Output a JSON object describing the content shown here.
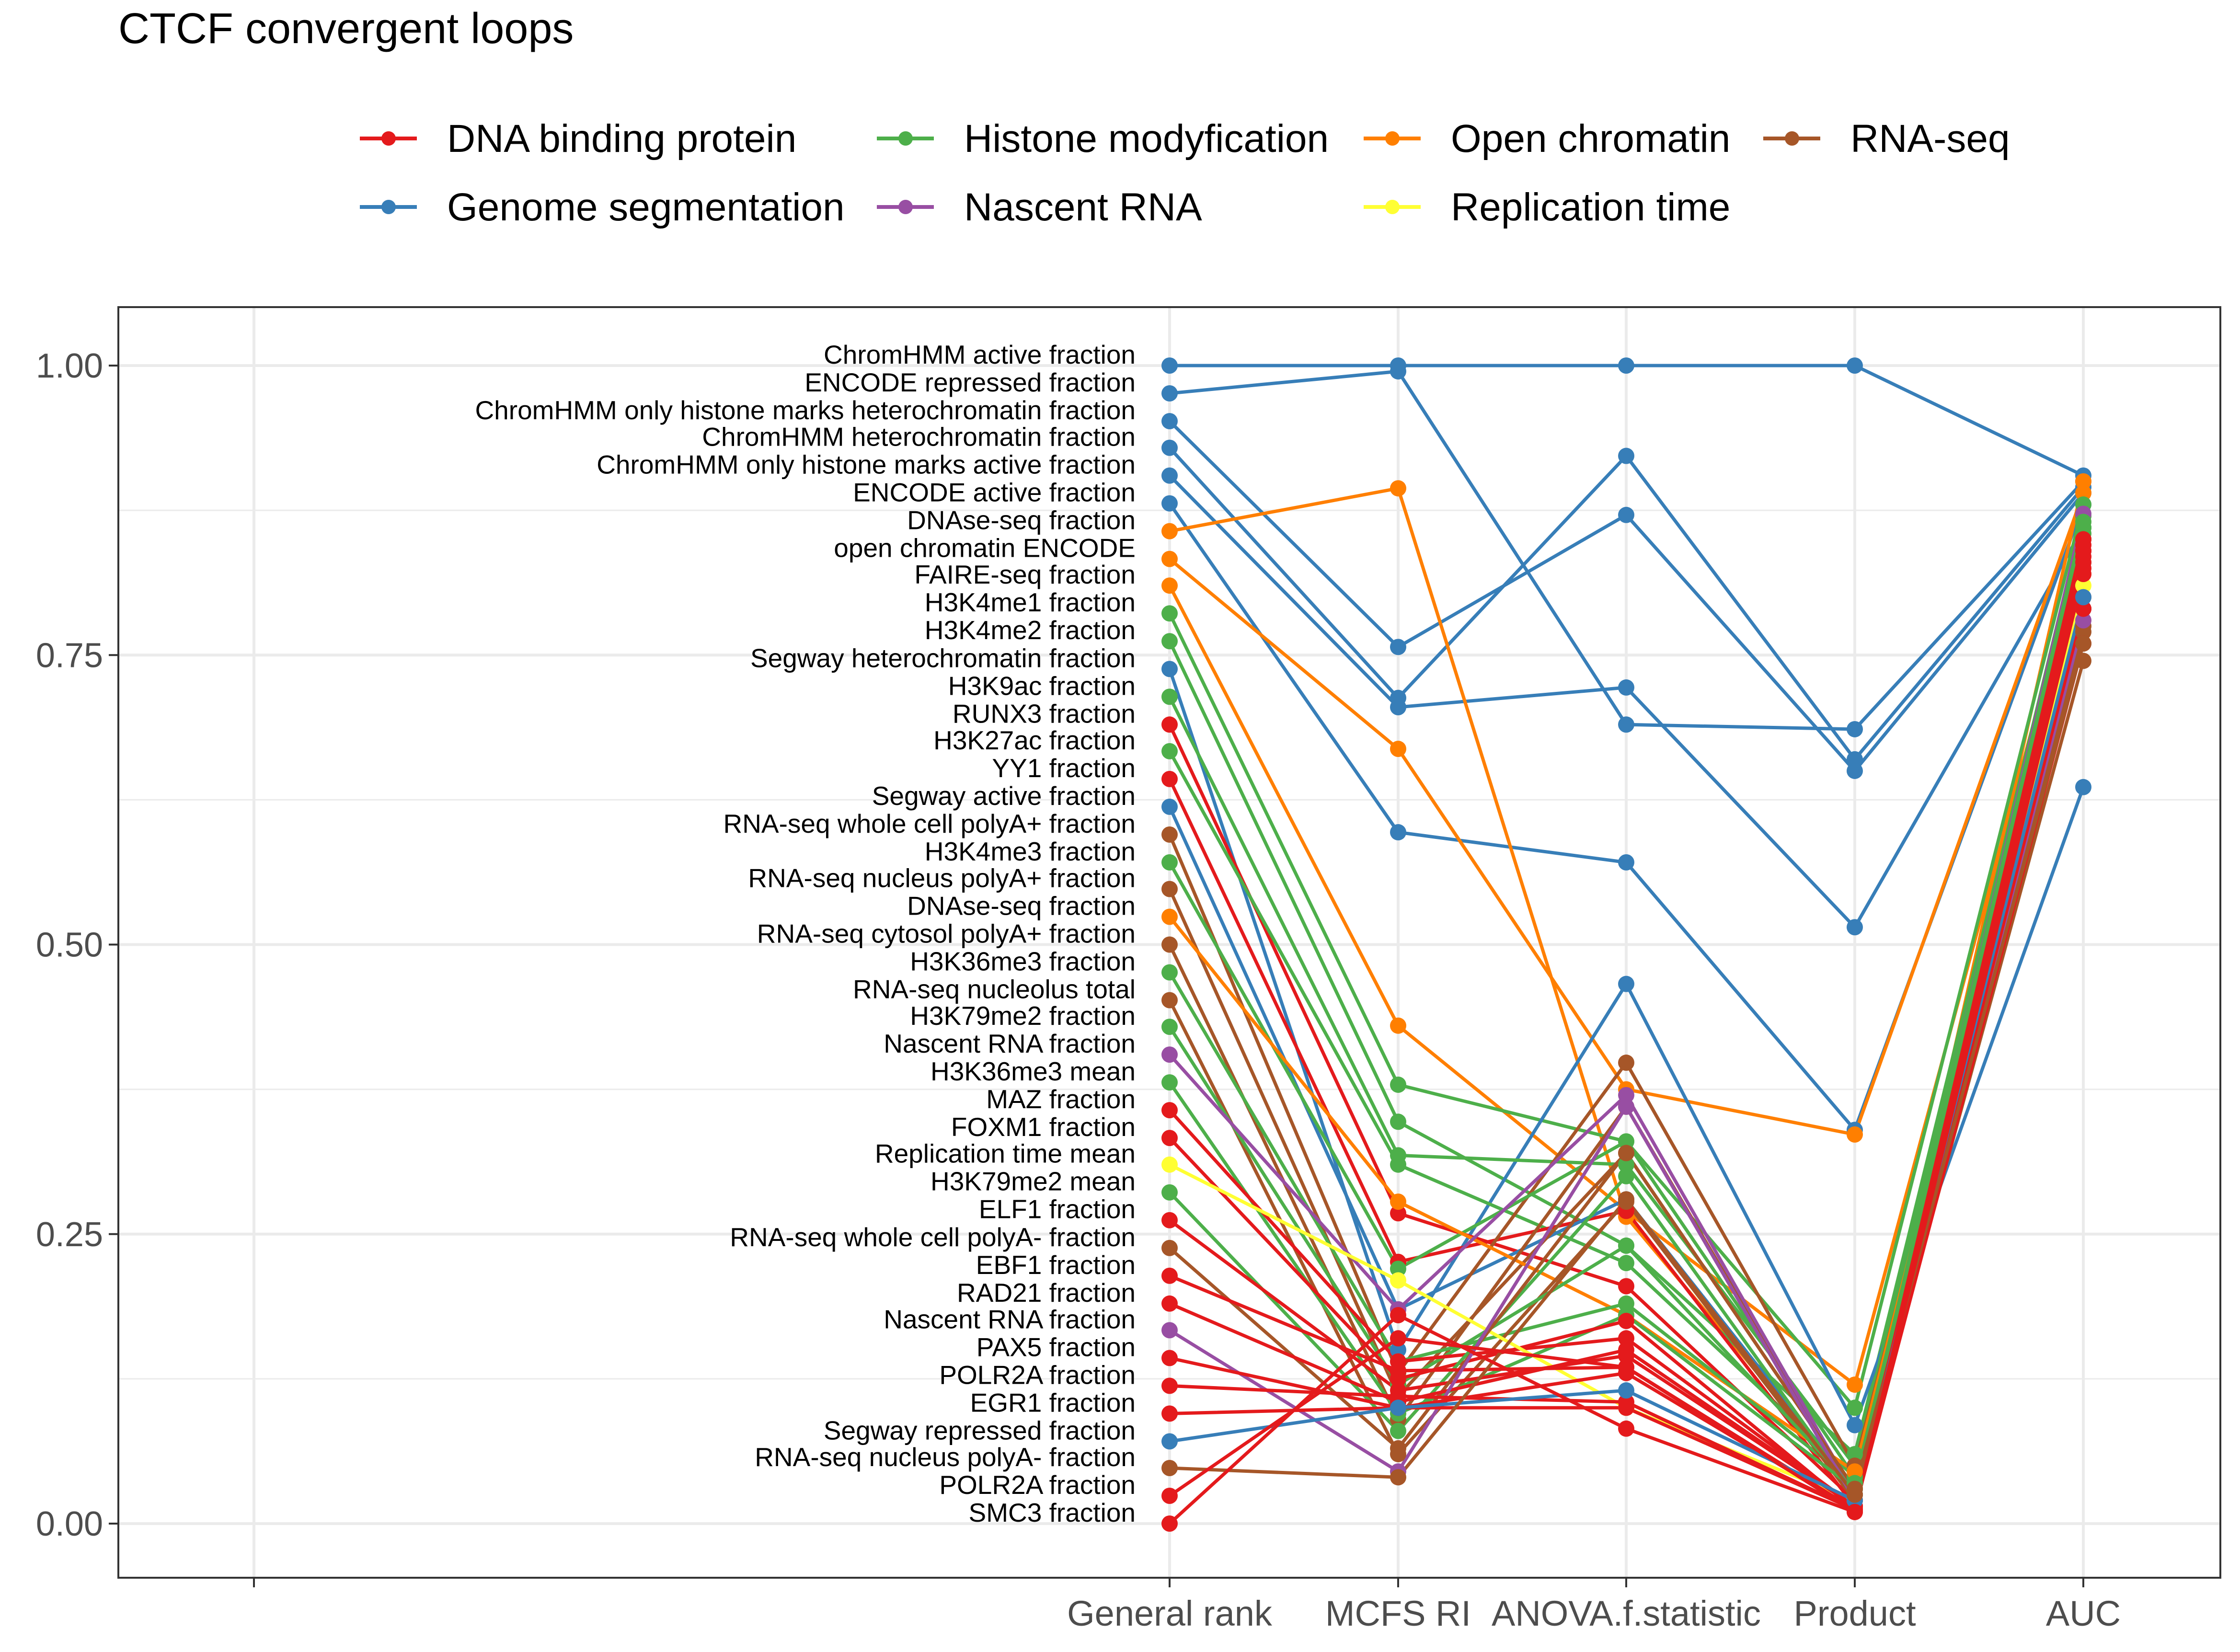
{
  "chart_data": {
    "type": "line",
    "subtype": "parallel-coordinates",
    "title": "CTCF convergent loops",
    "xlabel": "",
    "ylabel": "",
    "axes": [
      "",
      "General rank",
      "MCFS RI",
      "ANOVA.f.statistic",
      "Product",
      "AUC"
    ],
    "ylim": [
      0,
      1
    ],
    "yticks": [
      "0.00",
      "0.25",
      "0.50",
      "0.75",
      "1.00"
    ],
    "grid": true,
    "legend_position": "top",
    "groups": [
      {
        "name": "DNA binding protein",
        "color": "#E41A1C"
      },
      {
        "name": "Histone modyfication",
        "color": "#4DAF4A"
      },
      {
        "name": "Open chromatin",
        "color": "#FF7F00"
      },
      {
        "name": "RNA-seq",
        "color": "#A65628"
      },
      {
        "name": "Genome segmentation",
        "color": "#377EB8"
      },
      {
        "name": "Nascent RNA",
        "color": "#984EA3"
      },
      {
        "name": "Replication time",
        "color": "#FFFF33"
      }
    ],
    "series": [
      {
        "name": "ChromHMM active fraction",
        "group": "Genome segmentation",
        "values": [
          1.0,
          1.0,
          1.0,
          1.0,
          0.905
        ]
      },
      {
        "name": "ENCODE repressed fraction",
        "group": "Genome segmentation",
        "values": [
          0.976,
          0.995,
          0.69,
          0.686,
          0.9
        ]
      },
      {
        "name": "ChromHMM only histone marks heterochromatin fraction",
        "group": "Genome segmentation",
        "values": [
          0.952,
          0.757,
          0.871,
          0.65,
          0.89
        ]
      },
      {
        "name": "ChromHMM heterochromatin fraction",
        "group": "Genome segmentation",
        "values": [
          0.929,
          0.713,
          0.922,
          0.66,
          0.895
        ]
      },
      {
        "name": "ChromHMM only histone marks active fraction",
        "group": "Genome segmentation",
        "values": [
          0.905,
          0.705,
          0.722,
          0.515,
          0.86
        ]
      },
      {
        "name": "ENCODE active fraction",
        "group": "Genome segmentation",
        "values": [
          0.881,
          0.597,
          0.571,
          0.34,
          0.88
        ]
      },
      {
        "name": "DNAse-seq fraction",
        "group": "Open chromatin",
        "values": [
          0.857,
          0.894,
          0.265,
          0.03,
          0.9
        ]
      },
      {
        "name": "open chromatin ENCODE",
        "group": "Open chromatin",
        "values": [
          0.833,
          0.669,
          0.375,
          0.336,
          0.89
        ]
      },
      {
        "name": "FAIRE-seq fraction",
        "group": "Open chromatin",
        "values": [
          0.81,
          0.43,
          0.27,
          0.12,
          0.85
        ]
      },
      {
        "name": "H3K4me1 fraction",
        "group": "Histone modyfication",
        "values": [
          0.786,
          0.379,
          0.33,
          0.1,
          0.88
        ]
      },
      {
        "name": "H3K4me2 fraction",
        "group": "Histone modyfication",
        "values": [
          0.762,
          0.347,
          0.24,
          0.06,
          0.86
        ]
      },
      {
        "name": "Segway heterochromatin fraction",
        "group": "Genome segmentation",
        "values": [
          0.738,
          0.15,
          0.466,
          0.085,
          0.636
        ]
      },
      {
        "name": "H3K9ac fraction",
        "group": "Histone modyfication",
        "values": [
          0.714,
          0.318,
          0.31,
          0.05,
          0.87
        ]
      },
      {
        "name": "RUNX3 fraction",
        "group": "DNA binding protein",
        "values": [
          0.69,
          0.268,
          0.205,
          0.02,
          0.85
        ]
      },
      {
        "name": "H3K27ac fraction",
        "group": "Histone modyfication",
        "values": [
          0.667,
          0.31,
          0.225,
          0.04,
          0.86
        ]
      },
      {
        "name": "YY1 fraction",
        "group": "DNA binding protein",
        "values": [
          0.643,
          0.226,
          0.27,
          0.015,
          0.84
        ]
      },
      {
        "name": "Segway active fraction",
        "group": "Genome segmentation",
        "values": [
          0.619,
          0.185,
          0.28,
          0.03,
          0.79
        ]
      },
      {
        "name": "RNA-seq whole cell polyA+ fraction",
        "group": "RNA-seq",
        "values": [
          0.595,
          0.13,
          0.398,
          0.05,
          0.8
        ]
      },
      {
        "name": "H3K4me3 fraction",
        "group": "Histone modyfication",
        "values": [
          0.571,
          0.22,
          0.33,
          0.04,
          0.83
        ]
      },
      {
        "name": "RNA-seq nucleus polyA+ fraction",
        "group": "RNA-seq",
        "values": [
          0.548,
          0.11,
          0.32,
          0.03,
          0.79
        ]
      },
      {
        "name": "DNAse-seq fraction",
        "group": "Open chromatin",
        "values": [
          0.524,
          0.278,
          0.18,
          0.045,
          0.82
        ]
      },
      {
        "name": "RNA-seq cytosol polyA+ fraction",
        "group": "RNA-seq",
        "values": [
          0.5,
          0.09,
          0.36,
          0.025,
          0.775
        ]
      },
      {
        "name": "H3K36me3 fraction",
        "group": "Histone modyfication",
        "values": [
          0.476,
          0.14,
          0.19,
          0.035,
          0.84
        ]
      },
      {
        "name": "RNA-seq nucleolus total",
        "group": "RNA-seq",
        "values": [
          0.452,
          0.06,
          0.278,
          0.02,
          0.745
        ]
      },
      {
        "name": "H3K79me2 fraction",
        "group": "Histone modyfication",
        "values": [
          0.429,
          0.12,
          0.24,
          0.03,
          0.85
        ]
      },
      {
        "name": "Nascent RNA fraction",
        "group": "Nascent RNA",
        "values": [
          0.405,
          0.185,
          0.37,
          0.025,
          0.872
        ]
      },
      {
        "name": "H3K36me3 mean",
        "group": "Histone modyfication",
        "values": [
          0.381,
          0.095,
          0.18,
          0.03,
          0.865
        ]
      },
      {
        "name": "MAZ fraction",
        "group": "DNA binding protein",
        "values": [
          0.357,
          0.14,
          0.16,
          0.015,
          0.835
        ]
      },
      {
        "name": "FOXM1 fraction",
        "group": "DNA binding protein",
        "values": [
          0.333,
          0.125,
          0.175,
          0.012,
          0.83
        ]
      },
      {
        "name": "Replication time mean",
        "group": "Replication time",
        "values": [
          0.31,
          0.21,
          0.1,
          0.02,
          0.81
        ]
      },
      {
        "name": "H3K79me2 mean",
        "group": "Histone modyfication",
        "values": [
          0.286,
          0.08,
          0.3,
          0.025,
          0.855
        ]
      },
      {
        "name": "ELF1 fraction",
        "group": "DNA binding protein",
        "values": [
          0.262,
          0.115,
          0.145,
          0.015,
          0.845
        ]
      },
      {
        "name": "RNA-seq whole cell polyA- fraction",
        "group": "RNA-seq",
        "values": [
          0.238,
          0.065,
          0.32,
          0.03,
          0.77
        ]
      },
      {
        "name": "EBF1 fraction",
        "group": "DNA binding protein",
        "values": [
          0.214,
          0.132,
          0.135,
          0.012,
          0.84
        ]
      },
      {
        "name": "RAD21 fraction",
        "group": "DNA binding protein",
        "values": [
          0.19,
          0.105,
          0.15,
          0.015,
          0.85
        ]
      },
      {
        "name": "Nascent RNA fraction",
        "group": "Nascent RNA",
        "values": [
          0.167,
          0.045,
          0.36,
          0.02,
          0.78
        ]
      },
      {
        "name": "PAX5 fraction",
        "group": "DNA binding protein",
        "values": [
          0.143,
          0.1,
          0.13,
          0.012,
          0.825
        ]
      },
      {
        "name": "POLR2A fraction",
        "group": "DNA binding protein",
        "values": [
          0.119,
          0.11,
          0.105,
          0.012,
          0.76
        ]
      },
      {
        "name": "EGR1 fraction",
        "group": "DNA binding protein",
        "values": [
          0.095,
          0.1,
          0.1,
          0.012,
          0.79
        ]
      },
      {
        "name": "Segway repressed fraction",
        "group": "Genome segmentation",
        "values": [
          0.071,
          0.1,
          0.115,
          0.02,
          0.8
        ]
      },
      {
        "name": "RNA-seq nucleus polyA- fraction",
        "group": "RNA-seq",
        "values": [
          0.048,
          0.04,
          0.28,
          0.025,
          0.76
        ]
      },
      {
        "name": "POLR2A fraction",
        "group": "DNA binding protein",
        "values": [
          0.024,
          0.16,
          0.135,
          0.01,
          0.84
        ]
      },
      {
        "name": "SMC3 fraction",
        "group": "DNA binding protein",
        "values": [
          0.0,
          0.18,
          0.082,
          0.01,
          0.82
        ]
      }
    ]
  }
}
